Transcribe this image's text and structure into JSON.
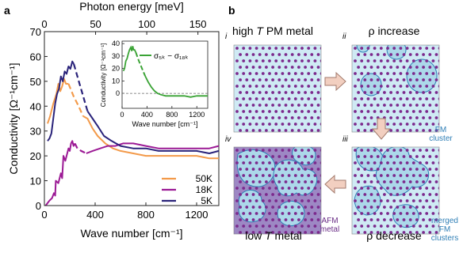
{
  "panel_labels": {
    "a": "a",
    "b": "b"
  },
  "colors": {
    "50K": "#f39a4a",
    "18K": "#9c1a95",
    "5K": "#2a237a",
    "inset_line": "#3aa335",
    "state_light": "#cfeaf4",
    "state_dark": "#9d88c4",
    "cluster_fill": "#acd8ea",
    "cluster_edge": "#2f7fb6",
    "atom": "#7c2a8d",
    "arrow_fill": "#f2cfc0",
    "arrow_edge": "#a27a6c",
    "fm_label": "#2f7fb6",
    "afm_label": "#6a2d86"
  },
  "chart_data": [
    {
      "type": "line",
      "top_axis_label": "Photon energy [meV]",
      "top_ticks": [
        "0",
        "50",
        "100",
        "150"
      ],
      "top_tick_values": [
        0,
        50,
        100,
        150
      ],
      "top_xlim": [
        0,
        170.4
      ],
      "xlabel": "Wave number [cm⁻¹]",
      "xticks": [
        0,
        400,
        800,
        1200
      ],
      "xtick_labels": [
        "0",
        "400",
        "800",
        "1200"
      ],
      "xlim": [
        0,
        1375
      ],
      "ylabel": "Conductivity [Ω⁻¹cm⁻¹]",
      "yticks": [
        0,
        10,
        20,
        30,
        40,
        50,
        60,
        70
      ],
      "ytick_labels": [
        "0",
        "10",
        "20",
        "30",
        "40",
        "50",
        "60",
        "70"
      ],
      "ylim": [
        0,
        70
      ],
      "legend_position": "bottom-right",
      "legend_order": [
        "50K",
        "18K",
        "5K"
      ],
      "series": [
        {
          "name": "50K",
          "solid": [
            [
              25,
              33
            ],
            [
              45,
              36
            ],
            [
              70,
              41
            ],
            [
              95,
              45
            ],
            [
              110,
              49
            ],
            [
              125,
              46
            ],
            [
              140,
              48
            ],
            [
              155,
              51
            ],
            [
              170,
              49
            ],
            [
              190,
              49
            ]
          ],
          "dashed": [
            [
              190,
              49
            ],
            [
              230,
              44
            ],
            [
              270,
              40
            ],
            [
              305,
              36
            ]
          ],
          "tail": [
            [
              305,
              36
            ],
            [
              340,
              35
            ],
            [
              380,
              31
            ],
            [
              420,
              28
            ],
            [
              480,
              25
            ],
            [
              540,
              23
            ],
            [
              600,
              22
            ],
            [
              700,
              21
            ],
            [
              800,
              20
            ],
            [
              900,
              20
            ],
            [
              1000,
              20
            ],
            [
              1100,
              20
            ],
            [
              1200,
              20
            ],
            [
              1300,
              19
            ],
            [
              1375,
              19
            ]
          ]
        },
        {
          "name": "18K",
          "solid": [
            [
              10,
              0
            ],
            [
              40,
              2
            ],
            [
              60,
              3
            ],
            [
              75,
              5
            ],
            [
              85,
              4
            ],
            [
              90,
              10
            ],
            [
              110,
              9
            ],
            [
              120,
              11
            ],
            [
              130,
              13
            ],
            [
              140,
              11
            ],
            [
              150,
              20
            ],
            [
              165,
              18
            ],
            [
              180,
              21
            ],
            [
              190,
              23
            ],
            [
              200,
              22
            ],
            [
              210,
              25
            ],
            [
              220,
              26
            ],
            [
              230,
              24
            ],
            [
              240,
              25
            ]
          ],
          "dashed": [
            [
              240,
              25
            ],
            [
              260,
              23
            ],
            [
              290,
              22
            ],
            [
              330,
              21
            ]
          ],
          "tail": [
            [
              330,
              21
            ],
            [
              380,
              22
            ],
            [
              440,
              23
            ],
            [
              500,
              24
            ],
            [
              560,
              24
            ],
            [
              620,
              25
            ],
            [
              700,
              25
            ],
            [
              800,
              24
            ],
            [
              900,
              23
            ],
            [
              1000,
              23
            ],
            [
              1100,
              23
            ],
            [
              1200,
              23
            ],
            [
              1300,
              23
            ],
            [
              1375,
              24
            ]
          ]
        },
        {
          "name": "5K",
          "solid": [
            [
              25,
              26
            ],
            [
              40,
              27
            ],
            [
              55,
              29
            ],
            [
              70,
              35
            ],
            [
              85,
              41
            ],
            [
              100,
              45
            ],
            [
              115,
              47
            ],
            [
              130,
              52
            ],
            [
              145,
              50
            ],
            [
              160,
              54
            ],
            [
              175,
              53
            ],
            [
              190,
              56
            ],
            [
              205,
              55
            ],
            [
              220,
              58
            ],
            [
              232,
              57
            ]
          ],
          "dashed": [
            [
              232,
              57
            ],
            [
              260,
              52
            ],
            [
              300,
              45
            ],
            [
              340,
              38
            ]
          ],
          "tail": [
            [
              340,
              38
            ],
            [
              380,
              35
            ],
            [
              420,
              32
            ],
            [
              470,
              28
            ],
            [
              530,
              26
            ],
            [
              600,
              24
            ],
            [
              700,
              23
            ],
            [
              800,
              23
            ],
            [
              900,
              22
            ],
            [
              1000,
              22
            ],
            [
              1100,
              22
            ],
            [
              1200,
              22
            ],
            [
              1300,
              21
            ],
            [
              1375,
              22
            ]
          ]
        }
      ],
      "inset": {
        "type": "line",
        "legend": "σ₅ₖ − σ₁₈ₖ",
        "xlabel": "Wave number [cm⁻¹]",
        "ylabel": "Conductivity [Ω⁻¹cm⁻¹]",
        "xticks": [
          0,
          400,
          800,
          1200
        ],
        "xtick_labels": [
          "0",
          "400",
          "800",
          "1200"
        ],
        "xlim": [
          0,
          1375
        ],
        "yticks": [
          0,
          10,
          20,
          30,
          40
        ],
        "ytick_labels": [
          "0",
          "10",
          "20",
          "30",
          "40"
        ],
        "ylim": [
          -12,
          42
        ],
        "zero_line": true,
        "solid": [
          [
            20,
            18
          ],
          [
            40,
            20
          ],
          [
            60,
            26
          ],
          [
            80,
            28
          ],
          [
            100,
            32
          ],
          [
            120,
            35
          ],
          [
            140,
            37
          ],
          [
            155,
            34
          ],
          [
            170,
            38
          ],
          [
            185,
            35
          ],
          [
            200,
            35
          ],
          [
            220,
            33
          ]
        ],
        "dashed": [
          [
            220,
            33
          ],
          [
            270,
            26
          ],
          [
            320,
            20
          ],
          [
            370,
            14
          ]
        ],
        "tail": [
          [
            370,
            14
          ],
          [
            420,
            9
          ],
          [
            470,
            5
          ],
          [
            520,
            2
          ],
          [
            570,
            0
          ],
          [
            620,
            -1
          ],
          [
            700,
            -2
          ],
          [
            800,
            -2
          ],
          [
            900,
            -2
          ],
          [
            1000,
            -2
          ],
          [
            1100,
            -3
          ],
          [
            1200,
            -2
          ],
          [
            1300,
            -2
          ],
          [
            1375,
            -2
          ]
        ]
      }
    }
  ],
  "diagram": {
    "states": [
      {
        "roman": "i",
        "title": "high T PM metal",
        "title_lines": [
          "high ",
          "T",
          " PM metal"
        ]
      },
      {
        "roman": "ii",
        "title": "ρ increase"
      },
      {
        "roman": "iii",
        "title": "ρ decrease"
      },
      {
        "roman": "iv",
        "title": "low T metal",
        "title_lines": [
          "low ",
          "T",
          " metal"
        ]
      }
    ],
    "fm_cluster_label": [
      "FM",
      "cluster"
    ],
    "merged_label": [
      "merged",
      "FM",
      "clusters"
    ],
    "afm_label": [
      "AFM",
      "metal"
    ]
  }
}
